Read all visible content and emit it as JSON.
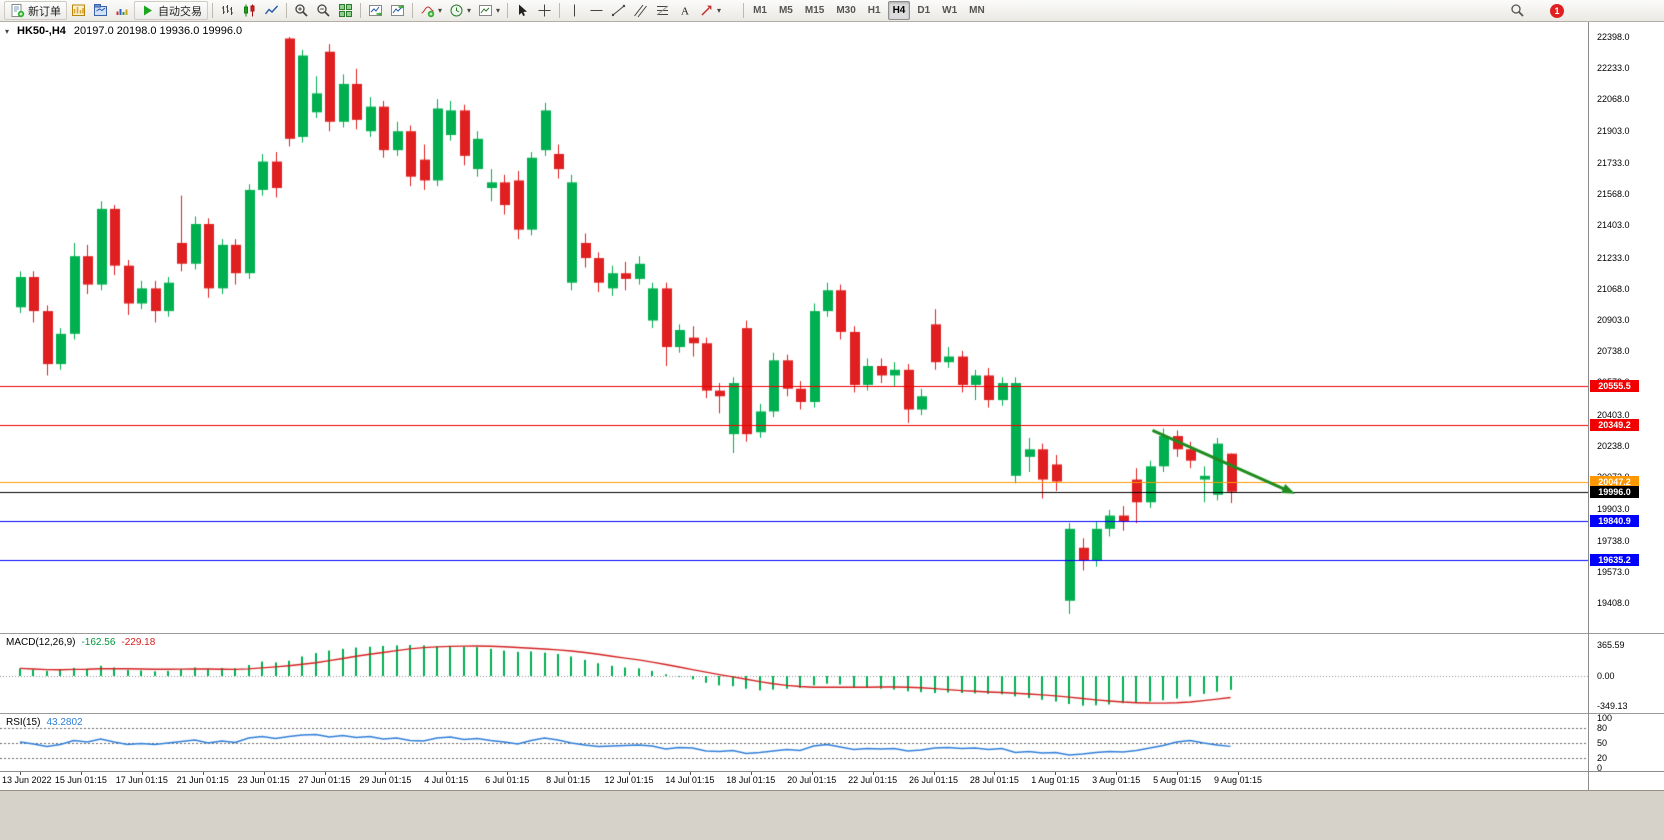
{
  "toolbar": {
    "new_order_label": "新订单",
    "autotrading_label": "自动交易",
    "timeframes": [
      "M1",
      "M5",
      "M15",
      "M30",
      "H1",
      "H4",
      "D1",
      "W1",
      "MN"
    ],
    "active_timeframe": "H4",
    "notification_count": "1"
  },
  "chart": {
    "symbol_period": "HK50-,H4",
    "ohlc_text": "20197.0 20198.0 19936.0 19996.0"
  },
  "chart_data": [
    {
      "type": "candlestick",
      "title": "HK50-,H4",
      "ohlc": {
        "open": 20197.0,
        "high": 20198.0,
        "low": 19936.0,
        "close": 19996.0
      },
      "y_range": [
        19255,
        22477
      ],
      "y_axis": [
        "22398.0",
        "22233.0",
        "22068.0",
        "21903.0",
        "21733.0",
        "21568.0",
        "21403.0",
        "21233.0",
        "21068.0",
        "20903.0",
        "20738.0",
        "20573.0",
        "20403.0",
        "20238.0",
        "20073.0",
        "19903.0",
        "19738.0",
        "19573.0",
        "19408.0"
      ],
      "x_labels": [
        "13 Jun 2022",
        "15 Jun 01:15",
        "17 Jun 01:15",
        "21 Jun 01:15",
        "23 Jun 01:15",
        "27 Jun 01:15",
        "29 Jun 01:15",
        "4 Jul 01:15",
        "6 Jul 01:15",
        "8 Jul 01:15",
        "12 Jul 01:15",
        "14 Jul 01:15",
        "18 Jul 01:15",
        "20 Jul 01:15",
        "22 Jul 01:15",
        "26 Jul 01:15",
        "28 Jul 01:15",
        "1 Aug 01:15",
        "3 Aug 01:15",
        "5 Aug 01:15",
        "9 Aug 01:15"
      ],
      "colors": {
        "up": "#00b050",
        "down": "#e02020"
      },
      "levels": [
        {
          "price": 20555.5,
          "label": "20555.5",
          "color": "#f00000"
        },
        {
          "price": 20349.2,
          "label": "20349.2",
          "color": "#f00000"
        },
        {
          "price": 20047.2,
          "label": "20047.2",
          "color": "#ff9800"
        },
        {
          "price": 19996.0,
          "label": "19996.0",
          "color": "#000000"
        },
        {
          "price": 19840.9,
          "label": "19840.9",
          "color": "#0000ff"
        },
        {
          "price": 19635.2,
          "label": "19635.2",
          "color": "#0000ff"
        }
      ],
      "arrow": {
        "from_bar": 84.2,
        "from_price": 20320,
        "to_bar": 94.8,
        "to_price": 19985,
        "color": "#1e8c1e"
      },
      "candles": [
        [
          20970,
          21160,
          20940,
          21130
        ],
        [
          21130,
          21160,
          20890,
          20950
        ],
        [
          20950,
          20980,
          20610,
          20670
        ],
        [
          20670,
          20860,
          20640,
          20830
        ],
        [
          20830,
          21310,
          20800,
          21240
        ],
        [
          21240,
          21300,
          21040,
          21090
        ],
        [
          21090,
          21530,
          21060,
          21490
        ],
        [
          21490,
          21510,
          21140,
          21190
        ],
        [
          21190,
          21220,
          20930,
          20990
        ],
        [
          20990,
          21110,
          20960,
          21070
        ],
        [
          21070,
          21110,
          20890,
          20950
        ],
        [
          20950,
          21130,
          20920,
          21100
        ],
        [
          21310,
          21560,
          21160,
          21200
        ],
        [
          21200,
          21450,
          21170,
          21410
        ],
        [
          21410,
          21440,
          21020,
          21070
        ],
        [
          21070,
          21330,
          21040,
          21300
        ],
        [
          21300,
          21330,
          21090,
          21150
        ],
        [
          21150,
          21620,
          21120,
          21590
        ],
        [
          21590,
          21780,
          21560,
          21740
        ],
        [
          21740,
          21790,
          21550,
          21600
        ],
        [
          22390,
          22398,
          21820,
          21860
        ],
        [
          21870,
          22330,
          21840,
          22300
        ],
        [
          22000,
          22190,
          21970,
          22100
        ],
        [
          22320,
          22360,
          21900,
          21950
        ],
        [
          21950,
          22200,
          21920,
          22150
        ],
        [
          22150,
          22230,
          21910,
          21960
        ],
        [
          21900,
          22080,
          21870,
          22030
        ],
        [
          22030,
          22060,
          21760,
          21800
        ],
        [
          21800,
          21950,
          21770,
          21900
        ],
        [
          21900,
          21930,
          21610,
          21660
        ],
        [
          21750,
          21830,
          21590,
          21640
        ],
        [
          21640,
          22070,
          21610,
          22020
        ],
        [
          21880,
          22060,
          21850,
          22010
        ],
        [
          22010,
          22040,
          21720,
          21770
        ],
        [
          21700,
          21900,
          21660,
          21860
        ],
        [
          21600,
          21700,
          21530,
          21630
        ],
        [
          21630,
          21670,
          21460,
          21510
        ],
        [
          21640,
          21690,
          21330,
          21380
        ],
        [
          21380,
          21790,
          21350,
          21760
        ],
        [
          21800,
          22050,
          21770,
          22010
        ],
        [
          21780,
          21830,
          21650,
          21700
        ],
        [
          21100,
          21670,
          21060,
          21630
        ],
        [
          21310,
          21360,
          21180,
          21230
        ],
        [
          21230,
          21260,
          21050,
          21100
        ],
        [
          21070,
          21190,
          21030,
          21150
        ],
        [
          21150,
          21210,
          21060,
          21120
        ],
        [
          21120,
          21240,
          21090,
          21200
        ],
        [
          20900,
          21100,
          20860,
          21070
        ],
        [
          21070,
          21100,
          20660,
          20760
        ],
        [
          20760,
          20880,
          20730,
          20850
        ],
        [
          20810,
          20870,
          20710,
          20780
        ],
        [
          20780,
          20810,
          20490,
          20530
        ],
        [
          20530,
          20570,
          20410,
          20500
        ],
        [
          20300,
          20600,
          20200,
          20570
        ],
        [
          20860,
          20900,
          20260,
          20300
        ],
        [
          20310,
          20460,
          20280,
          20420
        ],
        [
          20420,
          20730,
          20390,
          20690
        ],
        [
          20690,
          20720,
          20500,
          20540
        ],
        [
          20540,
          20580,
          20430,
          20470
        ],
        [
          20470,
          20990,
          20440,
          20950
        ],
        [
          20950,
          21100,
          20920,
          21060
        ],
        [
          21060,
          21090,
          20800,
          20840
        ],
        [
          20840,
          20870,
          20520,
          20560
        ],
        [
          20560,
          20700,
          20530,
          20660
        ],
        [
          20660,
          20700,
          20570,
          20610
        ],
        [
          20610,
          20680,
          20550,
          20640
        ],
        [
          20640,
          20670,
          20360,
          20430
        ],
        [
          20430,
          20540,
          20400,
          20500
        ],
        [
          20880,
          20960,
          20640,
          20680
        ],
        [
          20680,
          20760,
          20650,
          20710
        ],
        [
          20710,
          20740,
          20520,
          20560
        ],
        [
          20560,
          20640,
          20480,
          20610
        ],
        [
          20610,
          20650,
          20440,
          20480
        ],
        [
          20480,
          20600,
          20450,
          20570
        ],
        [
          20080,
          20600,
          20040,
          20570
        ],
        [
          20180,
          20280,
          20100,
          20220
        ],
        [
          20220,
          20250,
          19960,
          20060
        ],
        [
          20140,
          20190,
          20000,
          20050
        ],
        [
          19420,
          19830,
          19350,
          19800
        ],
        [
          19700,
          19750,
          19580,
          19630
        ],
        [
          19630,
          19840,
          19600,
          19800
        ],
        [
          19800,
          19900,
          19760,
          19870
        ],
        [
          19870,
          19920,
          19790,
          19840
        ],
        [
          20060,
          20120,
          19830,
          19940
        ],
        [
          19940,
          20160,
          19910,
          20130
        ],
        [
          20130,
          20330,
          20100,
          20290
        ],
        [
          20290,
          20320,
          20180,
          20220
        ],
        [
          20220,
          20260,
          20120,
          20160
        ],
        [
          20060,
          20130,
          19940,
          20080
        ],
        [
          19980,
          20280,
          19950,
          20250
        ],
        [
          20197,
          20198,
          19936,
          19996
        ]
      ]
    },
    {
      "type": "bar",
      "subtype": "macd",
      "label": "MACD(12,26,9)",
      "values_text": [
        "-162.56",
        "-229.18"
      ],
      "y_range": [
        -424,
        483
      ],
      "y_axis": [
        "365.59",
        "0.00",
        "-349.13"
      ],
      "colors": {
        "histogram": "#00b050",
        "signal": "#d32020"
      },
      "signal_period": 9,
      "histogram": [
        90,
        75,
        60,
        70,
        95,
        85,
        120,
        100,
        70,
        65,
        55,
        60,
        80,
        100,
        85,
        95,
        90,
        130,
        170,
        160,
        180,
        230,
        270,
        300,
        320,
        335,
        345,
        355,
        360,
        365,
        360,
        350,
        355,
        345,
        340,
        320,
        300,
        285,
        290,
        275,
        260,
        230,
        190,
        150,
        120,
        100,
        90,
        60,
        20,
        -10,
        -40,
        -80,
        -110,
        -120,
        -150,
        -170,
        -160,
        -150,
        -140,
        -110,
        -90,
        -100,
        -130,
        -140,
        -150,
        -160,
        -180,
        -190,
        -200,
        -195,
        -200,
        -205,
        -210,
        -215,
        -240,
        -260,
        -280,
        -300,
        -330,
        -349,
        -345,
        -335,
        -320,
        -310,
        -300,
        -285,
        -265,
        -240,
        -210,
        -185,
        -163
      ]
    },
    {
      "type": "line",
      "subtype": "rsi",
      "label": "RSI(15)",
      "value_text": "43.2802",
      "y_range": [
        -6,
        104
      ],
      "y_axis": [
        "100",
        "80",
        "50",
        "20",
        "0"
      ],
      "levels": [
        80,
        50,
        20
      ],
      "color": "#2f7ed8",
      "values": [
        52,
        48,
        43,
        47,
        55,
        52,
        58,
        52,
        47,
        49,
        47,
        50,
        53,
        56,
        50,
        54,
        51,
        60,
        63,
        59,
        63,
        66,
        67,
        62,
        65,
        61,
        63,
        58,
        60,
        55,
        54,
        60,
        62,
        57,
        59,
        55,
        52,
        48,
        55,
        60,
        56,
        50,
        46,
        43,
        44,
        45,
        46,
        44,
        38,
        41,
        40,
        34,
        33,
        35,
        29,
        31,
        34,
        37,
        35,
        44,
        47,
        42,
        37,
        39,
        38,
        39,
        34,
        36,
        40,
        41,
        39,
        40,
        37,
        39,
        31,
        33,
        30,
        31,
        26,
        28,
        31,
        33,
        32,
        35,
        40,
        45,
        52,
        55,
        50,
        46,
        43.28
      ]
    }
  ]
}
